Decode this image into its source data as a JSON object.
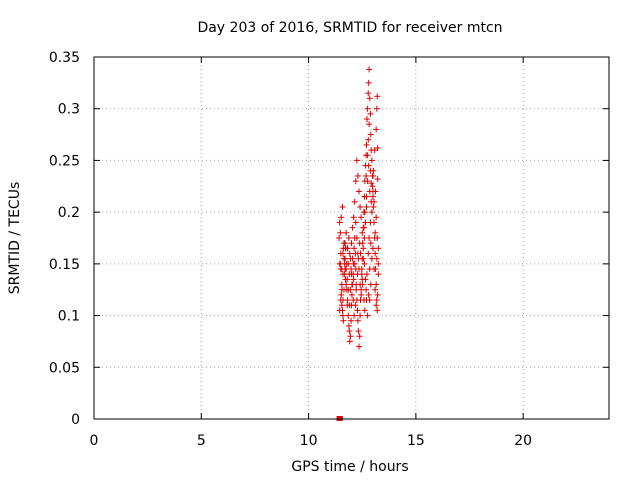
{
  "chart_data": {
    "type": "scatter",
    "title": "Day 203 of 2016, SRMTID for receiver mtcn",
    "xlabel": "GPS time / hours",
    "ylabel": "SRMTID / TECUs",
    "xlim": [
      0,
      24
    ],
    "ylim": [
      0,
      0.35
    ],
    "xticks": [
      0,
      5,
      10,
      15,
      20
    ],
    "xtick_labels": [
      "0",
      "5",
      "10",
      "15",
      "20"
    ],
    "yticks": [
      0,
      0.05,
      0.1,
      0.15,
      0.2,
      0.25,
      0.3,
      0.35
    ],
    "ytick_labels": [
      "0",
      "0.05",
      "0.1",
      "0.15",
      "0.2",
      "0.25",
      "0.3",
      "0.35"
    ],
    "grid": true,
    "marker": "plus",
    "color": "#dd0000",
    "zero_points": [
      [
        11.4,
        0.0
      ],
      [
        11.45,
        0.0
      ],
      [
        11.5,
        0.0
      ]
    ],
    "points": [
      [
        11.42,
        0.175
      ],
      [
        11.45,
        0.19
      ],
      [
        11.48,
        0.15
      ],
      [
        11.5,
        0.145
      ],
      [
        11.52,
        0.12
      ],
      [
        11.55,
        0.11
      ],
      [
        11.58,
        0.105
      ],
      [
        11.6,
        0.1
      ],
      [
        11.62,
        0.095
      ],
      [
        11.45,
        0.105
      ],
      [
        11.55,
        0.13
      ],
      [
        11.6,
        0.16
      ],
      [
        11.65,
        0.17
      ],
      [
        11.68,
        0.14
      ],
      [
        11.7,
        0.155
      ],
      [
        11.72,
        0.165
      ],
      [
        11.75,
        0.145
      ],
      [
        11.78,
        0.125
      ],
      [
        11.8,
        0.135
      ],
      [
        11.82,
        0.115
      ],
      [
        11.85,
        0.1
      ],
      [
        11.88,
        0.09
      ],
      [
        11.9,
        0.085
      ],
      [
        11.92,
        0.075
      ],
      [
        11.95,
        0.08
      ],
      [
        11.98,
        0.095
      ],
      [
        12.0,
        0.11
      ],
      [
        12.02,
        0.12
      ],
      [
        12.05,
        0.13
      ],
      [
        12.08,
        0.14
      ],
      [
        12.1,
        0.15
      ],
      [
        12.12,
        0.165
      ],
      [
        12.15,
        0.175
      ],
      [
        12.18,
        0.16
      ],
      [
        12.2,
        0.145
      ],
      [
        12.22,
        0.13
      ],
      [
        12.25,
        0.115
      ],
      [
        12.28,
        0.105
      ],
      [
        12.3,
        0.095
      ],
      [
        12.32,
        0.085
      ],
      [
        12.35,
        0.07
      ],
      [
        12.38,
        0.08
      ],
      [
        12.4,
        0.1
      ],
      [
        12.42,
        0.115
      ],
      [
        12.45,
        0.125
      ],
      [
        12.48,
        0.14
      ],
      [
        12.5,
        0.155
      ],
      [
        12.52,
        0.17
      ],
      [
        12.55,
        0.185
      ],
      [
        12.58,
        0.2
      ],
      [
        12.6,
        0.215
      ],
      [
        12.62,
        0.23
      ],
      [
        12.65,
        0.245
      ],
      [
        12.68,
        0.255
      ],
      [
        12.7,
        0.265
      ],
      [
        12.72,
        0.29
      ],
      [
        12.75,
        0.3
      ],
      [
        12.78,
        0.315
      ],
      [
        12.8,
        0.325
      ],
      [
        12.82,
        0.338
      ],
      [
        12.85,
        0.31
      ],
      [
        12.88,
        0.295
      ],
      [
        12.9,
        0.275
      ],
      [
        12.92,
        0.26
      ],
      [
        12.95,
        0.25
      ],
      [
        12.98,
        0.235
      ],
      [
        13.0,
        0.22
      ],
      [
        13.02,
        0.205
      ],
      [
        13.05,
        0.19
      ],
      [
        13.08,
        0.175
      ],
      [
        13.1,
        0.16
      ],
      [
        13.12,
        0.145
      ],
      [
        13.15,
        0.13
      ],
      [
        13.18,
        0.115
      ],
      [
        13.2,
        0.105
      ],
      [
        13.15,
        0.28
      ],
      [
        13.18,
        0.3
      ],
      [
        13.2,
        0.312
      ],
      [
        13.22,
        0.262
      ],
      [
        13.22,
        0.232
      ],
      [
        13.25,
        0.165
      ],
      [
        13.25,
        0.14
      ],
      [
        13.22,
        0.12
      ],
      [
        13.18,
        0.155
      ],
      [
        13.1,
        0.18
      ],
      [
        13.05,
        0.21
      ],
      [
        13.0,
        0.235
      ],
      [
        12.95,
        0.2
      ],
      [
        12.9,
        0.17
      ],
      [
        12.85,
        0.145
      ],
      [
        12.8,
        0.12
      ],
      [
        12.75,
        0.1
      ],
      [
        12.7,
        0.115
      ],
      [
        12.65,
        0.135
      ],
      [
        12.6,
        0.15
      ],
      [
        12.55,
        0.165
      ],
      [
        12.5,
        0.18
      ],
      [
        12.45,
        0.195
      ],
      [
        12.4,
        0.205
      ],
      [
        12.35,
        0.22
      ],
      [
        12.3,
        0.235
      ],
      [
        12.25,
        0.25
      ],
      [
        12.2,
        0.23
      ],
      [
        12.15,
        0.21
      ],
      [
        12.1,
        0.195
      ],
      [
        12.05,
        0.185
      ],
      [
        12.0,
        0.17
      ],
      [
        11.95,
        0.155
      ],
      [
        11.9,
        0.14
      ],
      [
        11.85,
        0.125
      ],
      [
        11.8,
        0.11
      ],
      [
        11.75,
        0.13
      ],
      [
        11.7,
        0.145
      ],
      [
        11.65,
        0.125
      ],
      [
        11.6,
        0.115
      ],
      [
        11.55,
        0.145
      ],
      [
        11.5,
        0.16
      ],
      [
        11.48,
        0.18
      ],
      [
        11.52,
        0.195
      ],
      [
        11.58,
        0.205
      ],
      [
        11.62,
        0.165
      ],
      [
        11.68,
        0.15
      ],
      [
        11.72,
        0.135
      ],
      [
        11.78,
        0.15
      ],
      [
        11.82,
        0.165
      ],
      [
        11.88,
        0.175
      ],
      [
        11.92,
        0.16
      ],
      [
        11.98,
        0.145
      ],
      [
        12.02,
        0.13
      ],
      [
        12.08,
        0.115
      ],
      [
        12.12,
        0.1
      ],
      [
        12.18,
        0.11
      ],
      [
        12.22,
        0.125
      ],
      [
        12.28,
        0.14
      ],
      [
        12.32,
        0.155
      ],
      [
        12.38,
        0.17
      ],
      [
        12.42,
        0.16
      ],
      [
        12.48,
        0.145
      ],
      [
        12.52,
        0.13
      ],
      [
        12.58,
        0.115
      ],
      [
        12.62,
        0.105
      ],
      [
        12.68,
        0.125
      ],
      [
        12.72,
        0.14
      ],
      [
        12.78,
        0.16
      ],
      [
        12.82,
        0.175
      ],
      [
        12.88,
        0.19
      ],
      [
        12.92,
        0.21
      ],
      [
        12.98,
        0.225
      ],
      [
        13.02,
        0.24
      ],
      [
        13.08,
        0.26
      ],
      [
        13.12,
        0.22
      ],
      [
        13.15,
        0.195
      ],
      [
        13.2,
        0.175
      ],
      [
        13.25,
        0.15
      ],
      [
        12.75,
        0.23
      ],
      [
        12.8,
        0.245
      ],
      [
        12.85,
        0.22
      ],
      [
        12.7,
        0.205
      ],
      [
        12.65,
        0.19
      ],
      [
        12.6,
        0.175
      ],
      [
        12.55,
        0.155
      ],
      [
        12.5,
        0.135
      ],
      [
        12.45,
        0.12
      ],
      [
        12.4,
        0.13
      ],
      [
        12.35,
        0.145
      ],
      [
        12.3,
        0.16
      ],
      [
        12.25,
        0.175
      ],
      [
        12.2,
        0.19
      ],
      [
        12.15,
        0.15
      ],
      [
        12.1,
        0.135
      ],
      [
        12.05,
        0.155
      ],
      [
        12.0,
        0.14
      ],
      [
        11.95,
        0.125
      ],
      [
        11.9,
        0.11
      ],
      [
        11.85,
        0.15
      ],
      [
        11.8,
        0.165
      ],
      [
        11.75,
        0.18
      ],
      [
        11.7,
        0.17
      ],
      [
        11.65,
        0.155
      ],
      [
        11.6,
        0.14
      ],
      [
        11.55,
        0.125
      ],
      [
        11.5,
        0.115
      ],
      [
        11.45,
        0.15
      ],
      [
        12.95,
        0.155
      ],
      [
        13.0,
        0.165
      ],
      [
        13.05,
        0.145
      ],
      [
        13.1,
        0.125
      ],
      [
        13.15,
        0.11
      ],
      [
        12.9,
        0.13
      ],
      [
        12.85,
        0.115
      ],
      [
        12.78,
        0.27
      ],
      [
        12.82,
        0.285
      ],
      [
        12.75,
        0.255
      ],
      [
        12.88,
        0.24
      ],
      [
        12.92,
        0.228
      ],
      [
        13.0,
        0.215
      ],
      [
        12.7,
        0.215
      ],
      [
        12.68,
        0.235
      ],
      [
        12.62,
        0.2
      ],
      [
        12.58,
        0.185
      ]
    ]
  }
}
